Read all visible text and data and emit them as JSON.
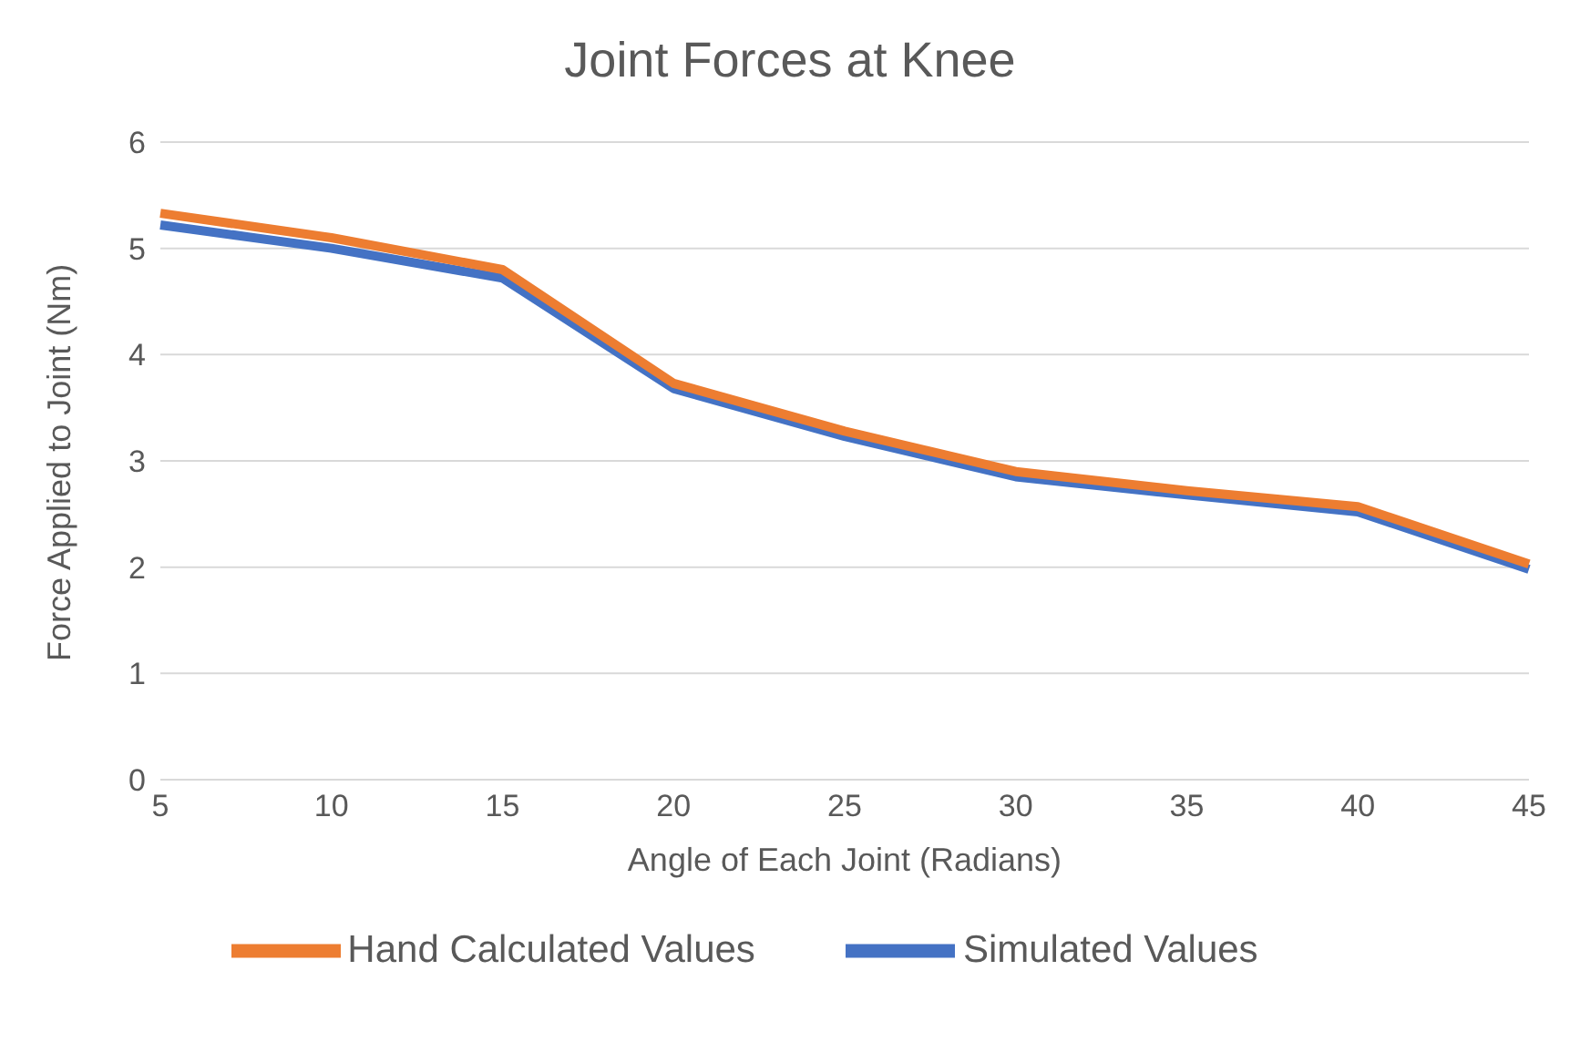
{
  "chart_data": {
    "type": "line",
    "title": "Joint Forces at Knee",
    "xlabel": "Angle of Each Joint (Radians)",
    "ylabel": "Force Applied to Joint (Nm)",
    "categories": [
      "5",
      "10",
      "15",
      "20",
      "25",
      "30",
      "35",
      "40",
      "45"
    ],
    "series": [
      {
        "name": "Simulated Values",
        "color": "#4472c4",
        "values": [
          5.22,
          5.0,
          4.72,
          3.68,
          3.23,
          2.85,
          2.68,
          2.52,
          1.98
        ]
      },
      {
        "name": "Hand Calculated Values",
        "color": "#ed7d31",
        "values": [
          5.33,
          5.1,
          4.8,
          3.73,
          3.28,
          2.9,
          2.72,
          2.57,
          2.03
        ]
      }
    ],
    "ylim": [
      0,
      6
    ],
    "yticks": [
      0,
      1,
      2,
      3,
      4,
      5,
      6
    ],
    "grid": "y",
    "legend": "bottom",
    "marker": "none",
    "line_style": "solid"
  }
}
